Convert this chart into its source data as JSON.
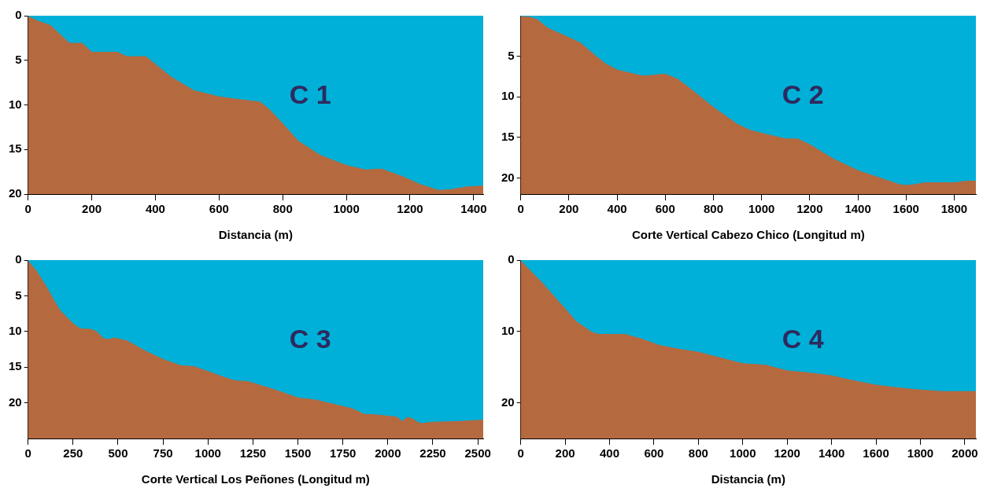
{
  "chart_data": [
    {
      "type": "area",
      "xlabel": "Distancia (m)",
      "annotations": [
        "C 1"
      ],
      "xlim": [
        0,
        1430
      ],
      "xticks": [
        0,
        200,
        400,
        600,
        800,
        1000,
        1200,
        1400
      ],
      "ylim": [
        20,
        0
      ],
      "yticks": [
        0,
        5,
        10,
        15,
        20
      ],
      "legend": false,
      "bands": [
        {
          "axis": "y",
          "from": 0,
          "to": 20,
          "color": "#b5693f"
        }
      ],
      "series": [
        {
          "color": "#00b0d8",
          "x": [
            0,
            30,
            70,
            130,
            170,
            200,
            280,
            310,
            370,
            450,
            520,
            600,
            640,
            730,
            760,
            800,
            850,
            920,
            1000,
            1060,
            1110,
            1180,
            1230,
            1290,
            1330,
            1380,
            1430
          ],
          "values": [
            0,
            0.5,
            1,
            3,
            3,
            4,
            4,
            4.5,
            4.5,
            6.8,
            8.3,
            9,
            9.2,
            9.6,
            10.5,
            12,
            14,
            15.6,
            16.7,
            17.2,
            17.1,
            18,
            18.8,
            19.5,
            19.4,
            19.1,
            19
          ]
        }
      ]
    },
    {
      "type": "area",
      "xlabel": "Corte Vertical Cabezo Chico (Longitud m)",
      "annotations": [
        "C 2"
      ],
      "xlim": [
        0,
        1890
      ],
      "xticks": [
        0,
        200,
        400,
        600,
        800,
        1000,
        1200,
        1400,
        1600,
        1800
      ],
      "ylim": [
        22,
        0
      ],
      "yticks": [
        5,
        10,
        15,
        20
      ],
      "legend": false,
      "bands": [
        {
          "axis": "y",
          "from": 0,
          "to": 22,
          "color": "#b5693f"
        }
      ],
      "series": [
        {
          "color": "#00b0d8",
          "x": [
            0,
            40,
            70,
            110,
            200,
            250,
            300,
            350,
            400,
            500,
            530,
            600,
            650,
            700,
            800,
            900,
            950,
            1000,
            1100,
            1150,
            1200,
            1300,
            1400,
            1500,
            1580,
            1620,
            1680,
            1800,
            1850,
            1890
          ],
          "values": [
            0,
            0.1,
            0.4,
            1.4,
            2.6,
            3.3,
            4.6,
            5.8,
            6.6,
            7.3,
            7.3,
            7.1,
            7.7,
            8.8,
            11.2,
            13.3,
            14,
            14.4,
            15.1,
            15.1,
            15.8,
            17.6,
            19,
            20,
            20.8,
            20.8,
            20.5,
            20.5,
            20.3,
            20.3
          ]
        }
      ]
    },
    {
      "type": "area",
      "xlabel": "Corte Vertical Los Peñones (Longitud m)",
      "annotations": [
        "C 3"
      ],
      "xlim": [
        0,
        2530
      ],
      "xticks": [
        0,
        250,
        500,
        750,
        1000,
        1250,
        1500,
        1750,
        2000,
        2250,
        2500
      ],
      "ylim": [
        25,
        0
      ],
      "yticks": [
        0,
        5,
        10,
        15,
        20
      ],
      "legend": false,
      "bands": [
        {
          "axis": "y",
          "from": 0,
          "to": 25,
          "color": "#b5693f"
        }
      ],
      "series": [
        {
          "color": "#00b0d8",
          "x": [
            0,
            50,
            100,
            180,
            250,
            290,
            350,
            380,
            420,
            450,
            480,
            550,
            650,
            750,
            850,
            920,
            1000,
            1100,
            1150,
            1220,
            1300,
            1400,
            1500,
            1600,
            1700,
            1800,
            1870,
            1950,
            2050,
            2080,
            2110,
            2140,
            2180,
            2250,
            2400,
            2530
          ],
          "values": [
            0,
            1.5,
            3.5,
            7,
            8.8,
            9.5,
            9.6,
            9.9,
            10.9,
            11,
            10.8,
            11.2,
            12.6,
            13.8,
            14.7,
            14.8,
            15.5,
            16.4,
            16.8,
            16.9,
            17.5,
            18.3,
            19.2,
            19.5,
            20.1,
            20.7,
            21.5,
            21.6,
            21.9,
            22.5,
            21.9,
            22.2,
            22.8,
            22.6,
            22.5,
            22.3
          ]
        }
      ]
    },
    {
      "type": "area",
      "xlabel": "Distancia (m)",
      "annotations": [
        "C 4"
      ],
      "xlim": [
        0,
        2050
      ],
      "xticks": [
        0,
        200,
        400,
        600,
        800,
        1000,
        1200,
        1400,
        1600,
        1800,
        2000
      ],
      "ylim": [
        25,
        0
      ],
      "yticks": [
        0,
        10,
        20
      ],
      "legend": false,
      "bands": [
        {
          "axis": "y",
          "from": 0,
          "to": 25,
          "color": "#b5693f"
        }
      ],
      "series": [
        {
          "color": "#00b0d8",
          "x": [
            0,
            100,
            200,
            250,
            320,
            350,
            470,
            550,
            620,
            700,
            800,
            900,
            1000,
            1100,
            1200,
            1300,
            1400,
            1500,
            1600,
            1700,
            1800,
            1900,
            2050
          ],
          "values": [
            0,
            3.2,
            6.7,
            8.5,
            10,
            10.3,
            10.3,
            11,
            11.8,
            12.3,
            12.8,
            13.6,
            14.4,
            14.6,
            15.4,
            15.7,
            16.1,
            16.8,
            17.4,
            17.8,
            18.1,
            18.3,
            18.3
          ]
        }
      ]
    }
  ]
}
